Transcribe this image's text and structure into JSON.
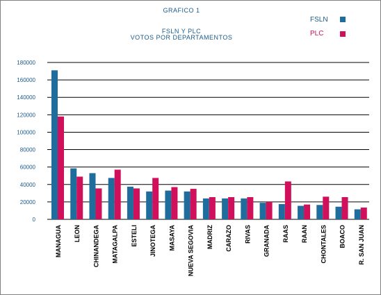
{
  "colors": {
    "fsln": "#1f6d9c",
    "plc": "#d0105a",
    "title": "#1a5a8a",
    "axis_label": "#1a5a8a",
    "category_label": "#000000",
    "grid": "#000000"
  },
  "chart_data": {
    "type": "bar",
    "title": "GRAFICO 1",
    "subtitle": [
      "FSLN Y PLC",
      "VOTOS POR DEPARTAMENTOS"
    ],
    "xlabel": "",
    "ylabel": "",
    "ylim": [
      0,
      180000
    ],
    "yticks": [
      0,
      20000,
      40000,
      60000,
      80000,
      100000,
      120000,
      140000,
      160000,
      180000
    ],
    "grid": true,
    "legend": "top-right",
    "categories": [
      "MANAGUA",
      "LEON",
      "CHINANDEGA",
      "MATAGALPA",
      "ESTELI",
      "JINOTEGA",
      "MASAYA",
      "NUEVA SEGOVIA",
      "MADRIZ",
      "CARAZO",
      "RIVAS",
      "GRANADA",
      "RAAS",
      "RAAN",
      "CHONTALES",
      "BOACO",
      "R. SAN JUAN"
    ],
    "series": [
      {
        "name": "FSLN",
        "values": [
          171000,
          58500,
          53000,
          47500,
          37500,
          32000,
          33000,
          32000,
          24000,
          24000,
          24000,
          19000,
          17500,
          15500,
          16500,
          14500,
          11500
        ]
      },
      {
        "name": "PLC",
        "values": [
          118000,
          49000,
          35500,
          57000,
          35500,
          47500,
          37000,
          35000,
          25500,
          25500,
          25500,
          20000,
          43500,
          17000,
          26000,
          25500,
          13500
        ]
      }
    ]
  }
}
